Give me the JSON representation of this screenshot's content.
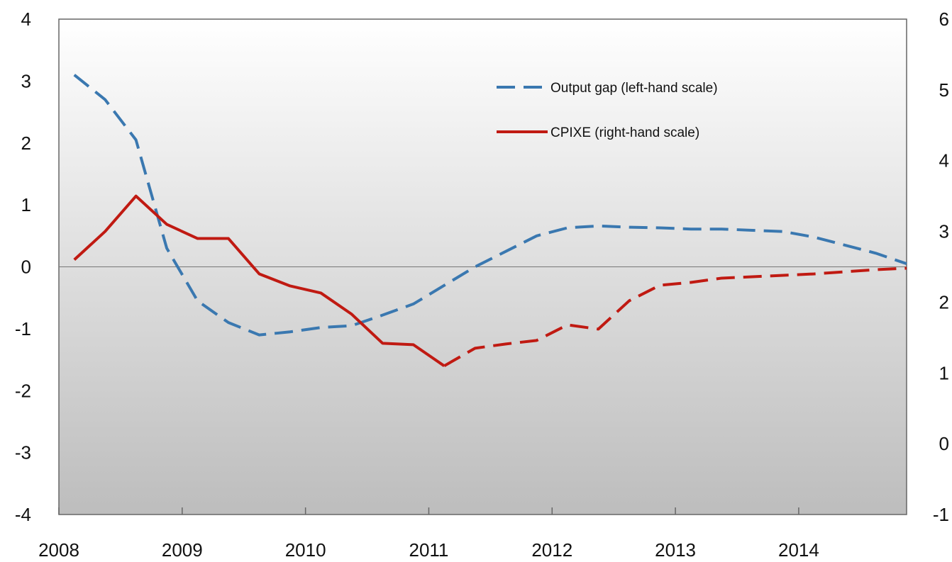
{
  "chart_data": {
    "type": "line",
    "x": [
      2008.125,
      2008.375,
      2008.625,
      2008.875,
      2009.125,
      2009.375,
      2009.625,
      2009.875,
      2010.125,
      2010.375,
      2010.625,
      2010.875,
      2011.125,
      2011.375,
      2011.625,
      2011.875,
      2012.125,
      2012.375,
      2012.625,
      2012.875,
      2013.125,
      2013.375,
      2013.625,
      2013.875,
      2014.125,
      2014.375,
      2014.625,
      2014.875
    ],
    "xlim": [
      2008,
      2014.875
    ],
    "xticks": [
      2008,
      2009,
      2010,
      2011,
      2012,
      2013,
      2014
    ],
    "ylim": [
      -4,
      4
    ],
    "yticks": [
      -4,
      -3,
      -2,
      -1,
      0,
      1,
      2,
      3,
      4
    ],
    "y2lim": [
      -1,
      6
    ],
    "y2ticks": [
      -1,
      0,
      1,
      2,
      3,
      4,
      5,
      6
    ],
    "series": [
      {
        "name": "Output gap (left-hand scale)",
        "color": "#3a78b0",
        "style": "dashed",
        "values": [
          3.1,
          2.7,
          2.05,
          0.3,
          -0.55,
          -0.9,
          -1.1,
          -1.05,
          -0.98,
          -0.95,
          -0.78,
          -0.6,
          -0.3,
          0.0,
          0.25,
          0.5,
          0.63,
          0.66,
          0.64,
          0.63,
          0.61,
          0.61,
          0.59,
          0.57,
          0.48,
          0.35,
          0.22,
          0.05
        ]
      },
      {
        "name": "CPIXE (right-hand scale)",
        "color": "#c01a12",
        "axis": "y2",
        "style": "solid",
        "dashed_from": 12,
        "values": [
          2.6,
          3.0,
          3.5,
          3.1,
          2.9,
          2.9,
          2.4,
          2.23,
          2.13,
          1.83,
          1.42,
          1.4,
          1.1,
          1.35,
          1.41,
          1.46,
          1.68,
          1.62,
          2.02,
          2.24,
          2.28,
          2.34,
          2.36,
          2.38,
          2.4,
          2.43,
          2.46,
          2.48
        ]
      }
    ],
    "zero_line": true
  }
}
